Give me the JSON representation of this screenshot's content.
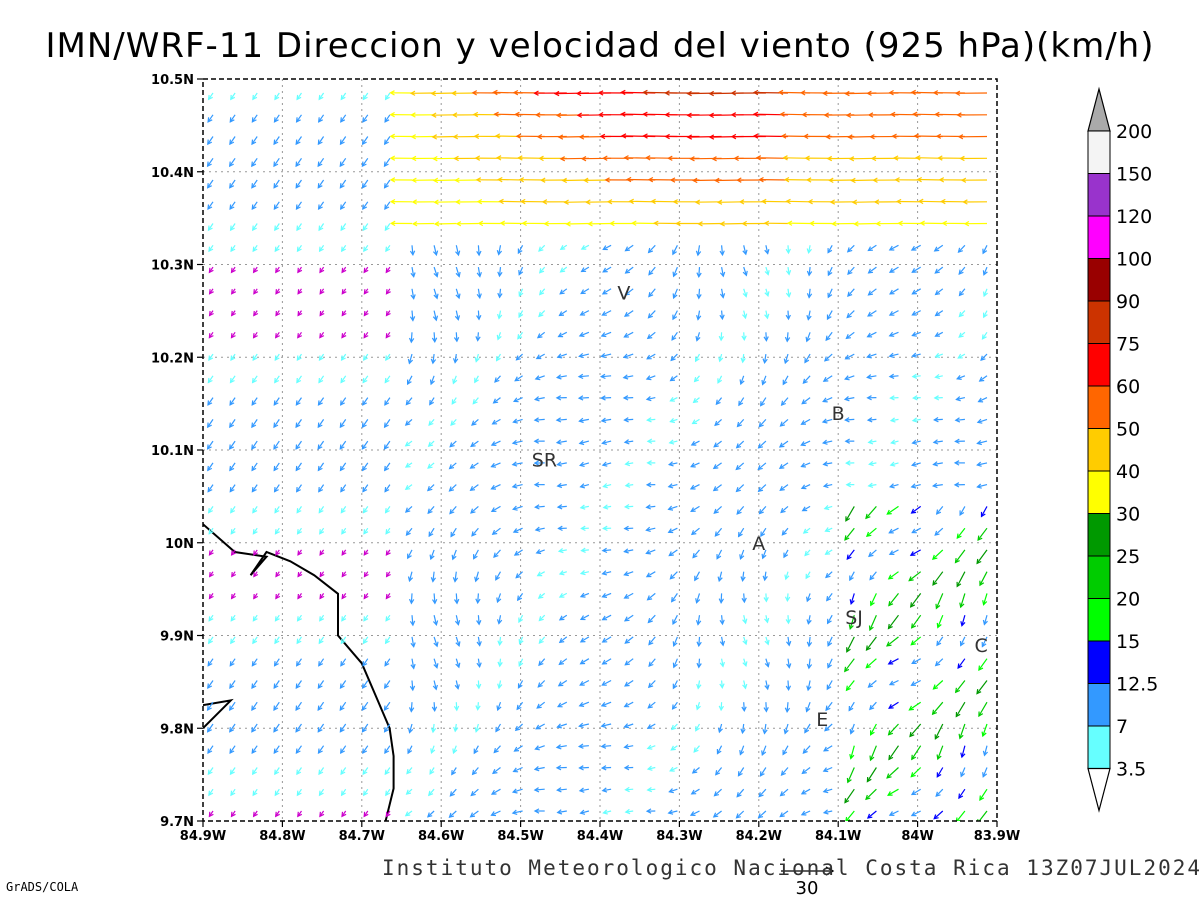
{
  "title": "IMN/WRF-11 Direccion y velocidad del viento (925 hPa)(km/h)",
  "credit": "Instituto Meteorologico Nacional Costa Rica 13Z07JUL2024",
  "software": "GrADS/COLA",
  "reference_vector": {
    "label": "30",
    "value": 30
  },
  "map": {
    "lon_range": [
      -84.9,
      -83.9
    ],
    "lat_range": [
      9.7,
      10.5
    ],
    "x_ticks": [
      "84.9W",
      "84.8W",
      "84.7W",
      "84.6W",
      "84.5W",
      "84.4W",
      "84.3W",
      "84.2W",
      "84.1W",
      "84W",
      "83.9W"
    ],
    "y_ticks": [
      "10.5N",
      "10.4N",
      "10.3N",
      "10.2N",
      "10.1N",
      "10N",
      "9.9N",
      "9.8N",
      "9.7N"
    ],
    "grid": true,
    "cities": [
      {
        "label": "V",
        "lon": -84.37,
        "lat": 10.27
      },
      {
        "label": "B",
        "lon": -84.1,
        "lat": 10.14
      },
      {
        "label": "SR",
        "lon": -84.47,
        "lat": 10.09
      },
      {
        "label": "A",
        "lon": -84.2,
        "lat": 10.0
      },
      {
        "label": "SJ",
        "lon": -84.08,
        "lat": 9.92
      },
      {
        "label": "C",
        "lon": -83.92,
        "lat": 9.89
      },
      {
        "label": "E",
        "lon": -84.12,
        "lat": 9.81
      },
      {
        "label": "",
        "lon": -83.91,
        "lat": 10.0
      }
    ],
    "coastlines": [
      [
        [
          -84.9,
          10.02
        ],
        [
          -84.86,
          9.99
        ],
        [
          -84.82,
          9.985
        ],
        [
          -84.84,
          9.965
        ],
        [
          -84.82,
          9.99
        ],
        [
          -84.79,
          9.98
        ],
        [
          -84.76,
          9.965
        ],
        [
          -84.73,
          9.945
        ],
        [
          -84.73,
          9.9
        ],
        [
          -84.7,
          9.87
        ],
        [
          -84.68,
          9.83
        ],
        [
          -84.665,
          9.8
        ],
        [
          -84.66,
          9.77
        ],
        [
          -84.66,
          9.735
        ],
        [
          -84.67,
          9.7
        ]
      ],
      [
        [
          -84.9,
          9.825
        ],
        [
          -84.865,
          9.83
        ],
        [
          -84.9,
          9.8
        ]
      ]
    ]
  },
  "colorbar": {
    "labels": [
      "200",
      "150",
      "120",
      "100",
      "90",
      "75",
      "60",
      "50",
      "40",
      "30",
      "25",
      "20",
      "15",
      "12.5",
      "7",
      "3.5"
    ],
    "colors": [
      "#f4f4f4",
      "#9933cc",
      "#ff00ff",
      "#990000",
      "#cc3300",
      "#ff0000",
      "#ff6600",
      "#ffcc00",
      "#ffff00",
      "#009900",
      "#00cc00",
      "#00ff00",
      "#0000ff",
      "#3399ff",
      "#66ffff"
    ],
    "over_color": "#aaaaaa",
    "under_color": "#ffffff"
  }
}
